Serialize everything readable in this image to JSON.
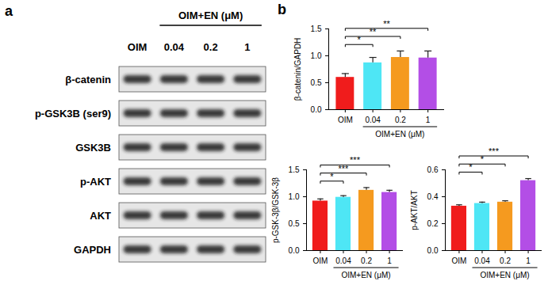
{
  "blot": {
    "panel_label": "a",
    "group_label": "OIM+EN (μM)",
    "lanes": [
      "OIM",
      "0.04",
      "0.2",
      "1"
    ],
    "proteins": [
      "β-catenin",
      "p-GSK3B (ser9)",
      "GSK3B",
      "p-AKT",
      "AKT",
      "GAPDH"
    ]
  },
  "chart_panel_label": "b",
  "chart_data": [
    {
      "type": "bar",
      "ylabel": "β-catenin/GAPDH",
      "categories": [
        "OIM",
        "0.04",
        "0.2",
        "1"
      ],
      "values": [
        0.6,
        0.87,
        0.97,
        0.96
      ],
      "errors": [
        0.07,
        0.1,
        0.12,
        0.13
      ],
      "colors": [
        "#f01c1c",
        "#4ee6f5",
        "#f59a1f",
        "#b34ee6"
      ],
      "ylim": [
        0,
        1.5
      ],
      "yticks": [
        {
          "value": 0,
          "label": "0.0"
        },
        0.5,
        {
          "value": 1,
          "label": "1.0"
        },
        1.5
      ],
      "x_group": {
        "label": "OIM+EN (μM)",
        "categories": [
          "0.04",
          "0.2",
          "1"
        ]
      },
      "significance": [
        {
          "compare": [
            "OIM",
            "0.04"
          ],
          "label": "*"
        },
        {
          "compare": [
            "OIM",
            "0.2"
          ],
          "label": "**"
        },
        {
          "compare": [
            "OIM",
            "1"
          ],
          "label": "**"
        }
      ]
    },
    {
      "type": "bar",
      "ylabel": "p-GSK-3β/GSK-3β",
      "categories": [
        "OIM",
        "0.04",
        "0.2",
        "1"
      ],
      "values": [
        0.92,
        0.99,
        1.12,
        1.08
      ],
      "errors": [
        0.04,
        0.03,
        0.05,
        0.04
      ],
      "colors": [
        "#f01c1c",
        "#4ee6f5",
        "#f59a1f",
        "#b34ee6"
      ],
      "ylim": [
        0,
        1.5
      ],
      "yticks": [
        {
          "value": 0,
          "label": "0.0"
        },
        0.5,
        {
          "value": 1,
          "label": "1.0"
        },
        1.5
      ],
      "x_group": {
        "label": "OIM+EN (μM)",
        "categories": [
          "0.04",
          "0.2",
          "1"
        ]
      },
      "significance": [
        {
          "compare": [
            "OIM",
            "0.04"
          ],
          "label": "*"
        },
        {
          "compare": [
            "OIM",
            "0.2"
          ],
          "label": "***"
        },
        {
          "compare": [
            "OIM",
            "1"
          ],
          "label": "***"
        }
      ]
    },
    {
      "type": "bar",
      "ylabel": "p-AKT/AKT",
      "categories": [
        "OIM",
        "0.04",
        "0.2",
        "1"
      ],
      "values": [
        0.33,
        0.35,
        0.36,
        0.52
      ],
      "errors": [
        0.01,
        0.01,
        0.01,
        0.015
      ],
      "colors": [
        "#f01c1c",
        "#4ee6f5",
        "#f59a1f",
        "#b34ee6"
      ],
      "ylim": [
        0,
        0.6
      ],
      "yticks": [
        {
          "value": 0,
          "label": "0.0"
        },
        0.2,
        0.4,
        0.6
      ],
      "x_group": {
        "label": "OIM+EN (μM)",
        "categories": [
          "0.04",
          "0.2",
          "1"
        ]
      },
      "significance": [
        {
          "compare": [
            "OIM",
            "0.04"
          ],
          "label": "*"
        },
        {
          "compare": [
            "OIM",
            "0.2"
          ],
          "label": "*"
        },
        {
          "compare": [
            "OIM",
            "1"
          ],
          "label": "***"
        }
      ]
    }
  ]
}
